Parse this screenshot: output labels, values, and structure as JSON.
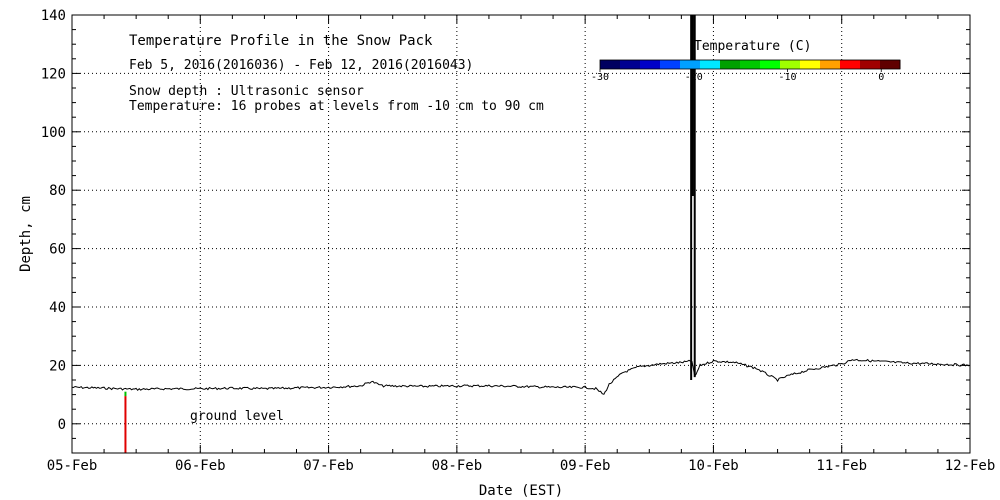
{
  "chart_data": {
    "type": "line",
    "title": "Temperature Profile in the Snow Pack",
    "subtitle": "Feb  5, 2016(2016036) - Feb 12, 2016(2016043)",
    "notes": [
      "Snow depth : Ultrasonic sensor",
      "Temperature: 16 probes at levels from -10 cm to 90 cm"
    ],
    "xlabel": "Date (EST)",
    "ylabel": "Depth, cm",
    "x_ticks": [
      "05-Feb",
      "06-Feb",
      "07-Feb",
      "08-Feb",
      "09-Feb",
      "10-Feb",
      "11-Feb",
      "12-Feb"
    ],
    "xlim": [
      "2016-02-05",
      "2016-02-12"
    ],
    "y_ticks": [
      0,
      20,
      40,
      60,
      80,
      100,
      120,
      140
    ],
    "ylim": [
      -10,
      140
    ],
    "grid": true,
    "ground_label": "ground level",
    "colorbar": {
      "title": "Temperature (C)",
      "range": [
        -30,
        2
      ],
      "tick_labels": [
        "-30",
        "-20",
        "-10",
        "0"
      ],
      "tick_values": [
        -30,
        -20,
        -10,
        0
      ],
      "colors": [
        "#000060",
        "#000090",
        "#0000c8",
        "#0040ff",
        "#00a0ff",
        "#00e8ff",
        "#00a000",
        "#00c800",
        "#00ff00",
        "#a0ff00",
        "#ffff00",
        "#ffa000",
        "#ff0000",
        "#a00000",
        "#600000"
      ]
    },
    "series": [
      {
        "type": "line",
        "color": "#000000",
        "points": [
          [
            "2016-02-05T00:00",
            12.5
          ],
          [
            "2016-02-05T06:00",
            12.2
          ],
          [
            "2016-02-05T12:00",
            11.8
          ],
          [
            "2016-02-05T18:00",
            12.0
          ],
          [
            "2016-02-06T00:00",
            12.0
          ],
          [
            "2016-02-06T06:00",
            12.2
          ],
          [
            "2016-02-06T12:00",
            12.0
          ],
          [
            "2016-02-06T18:00",
            12.3
          ],
          [
            "2016-02-07T00:00",
            12.5
          ],
          [
            "2016-02-07T06:00",
            13.0
          ],
          [
            "2016-02-07T08:00",
            14.5
          ],
          [
            "2016-02-07T10:00",
            13.0
          ],
          [
            "2016-02-07T18:00",
            12.8
          ],
          [
            "2016-02-08T00:00",
            13.0
          ],
          [
            "2016-02-08T06:00",
            13.0
          ],
          [
            "2016-02-08T12:00",
            12.8
          ],
          [
            "2016-02-08T18:00",
            12.5
          ],
          [
            "2016-02-09T00:00",
            12.5
          ],
          [
            "2016-02-09T02:00",
            12.0
          ],
          [
            "2016-02-09T03:30",
            10.0
          ],
          [
            "2016-02-09T04:30",
            13.5
          ],
          [
            "2016-02-09T07:00",
            17.5
          ],
          [
            "2016-02-09T10:00",
            19.5
          ],
          [
            "2016-02-09T14:00",
            20.5
          ],
          [
            "2016-02-09T18:00",
            21.0
          ],
          [
            "2016-02-09T20:00",
            21.5
          ],
          [
            "2016-02-09T20:30",
            16.0
          ],
          [
            "2016-02-09T21:30",
            20.0
          ],
          [
            "2016-02-10T00:00",
            21.5
          ],
          [
            "2016-02-10T04:00",
            21.0
          ],
          [
            "2016-02-10T08:00",
            19.0
          ],
          [
            "2016-02-10T10:00",
            17.0
          ],
          [
            "2016-02-10T12:00",
            15.0
          ],
          [
            "2016-02-10T14:00",
            16.5
          ],
          [
            "2016-02-10T18:00",
            18.5
          ],
          [
            "2016-02-11T00:00",
            20.5
          ],
          [
            "2016-02-11T02:00",
            22.0
          ],
          [
            "2016-02-11T06:00",
            21.5
          ],
          [
            "2016-02-11T12:00",
            20.8
          ],
          [
            "2016-02-11T18:00",
            20.5
          ],
          [
            "2016-02-12T00:00",
            20.0
          ]
        ]
      }
    ],
    "vertical_segments": [
      {
        "x": "2016-02-05T10:00",
        "y_from": -10,
        "y_to": 9.5,
        "color": "#e00000"
      },
      {
        "x": "2016-02-05T10:00",
        "y_from": 9.5,
        "y_to": 11,
        "color": "#00c000"
      },
      {
        "x": "2016-02-09T19:50",
        "y_from": 15,
        "y_to": 140,
        "color": "#000000"
      },
      {
        "x": "2016-02-09T20:30",
        "y_from": 16,
        "y_to": 140,
        "color": "#000000"
      },
      {
        "x": "2016-02-09T20:10",
        "y_from": 78,
        "y_to": 140,
        "color": "#000000"
      }
    ]
  }
}
